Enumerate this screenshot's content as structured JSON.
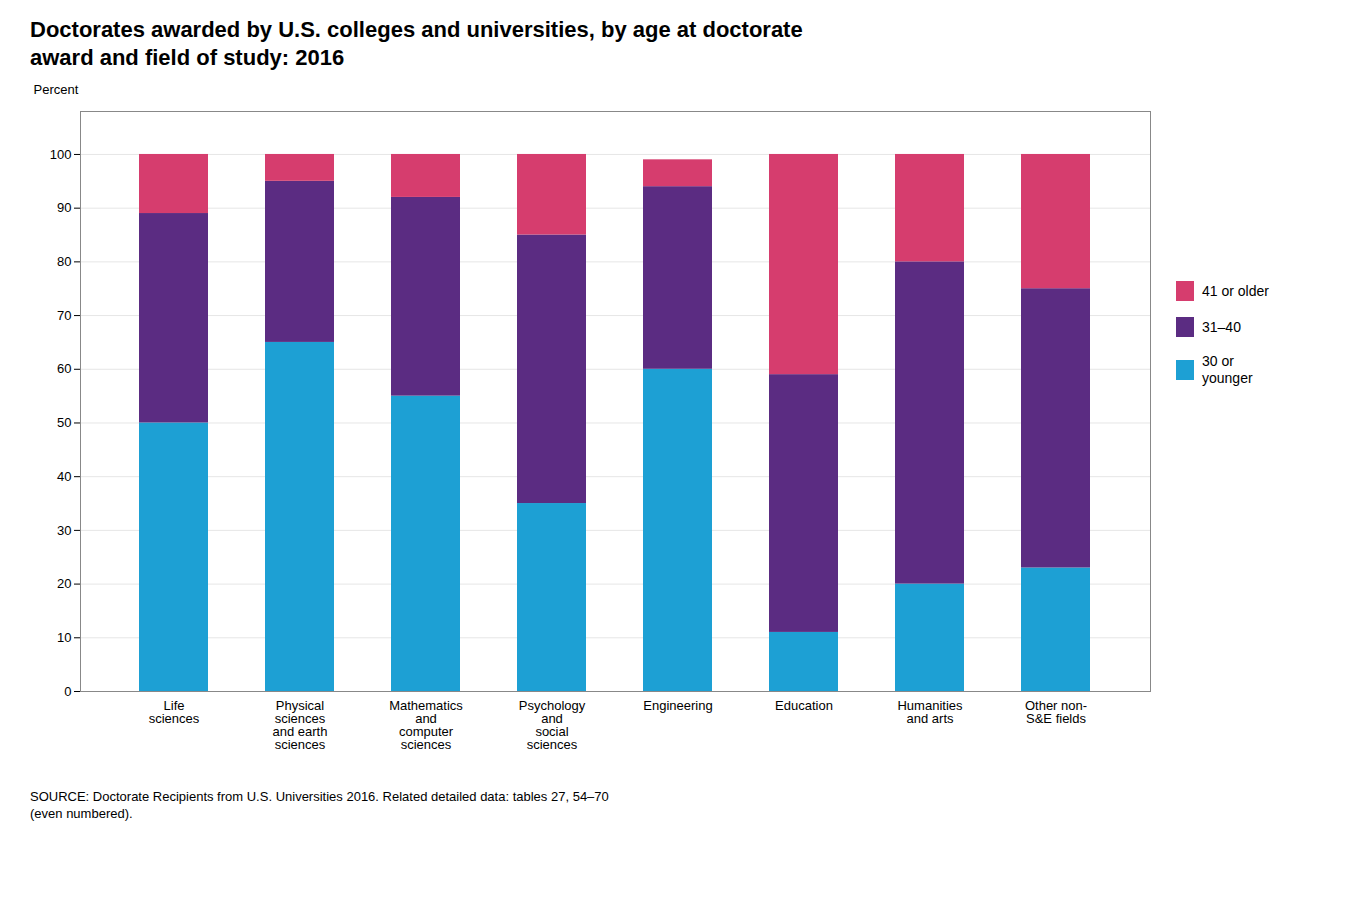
{
  "chart_data": {
    "type": "bar",
    "stacked": true,
    "title": "Doctorates awarded by U.S. colleges and universities, by age at doctorate\naward and field of study: 2016",
    "ylabel": "Percent",
    "caption": "SOURCE: Doctorate Recipients from U.S. Universities 2016. Related detailed data: tables 27, 54–70\n(even numbered).",
    "categories": [
      "Life\nsciences",
      "Physical\nsciences\nand earth\nsciences",
      "Mathematics\nand\ncomputer\nsciences",
      "Psychology\nand\nsocial\nsciences",
      "Engineering",
      "Education",
      "Humanities\nand arts",
      "Other non-\nS&E fields"
    ],
    "series": [
      {
        "name": "30 or\nyounger",
        "color": "#1da0d4",
        "values": [
          50,
          65,
          55,
          35,
          60,
          11,
          20,
          23
        ]
      },
      {
        "name": "31–40",
        "color": "#5b2c82",
        "values": [
          39,
          30,
          37,
          50,
          34,
          48,
          60,
          52
        ]
      },
      {
        "name": "41 or older",
        "color": "#d63d6e",
        "values": [
          11,
          5,
          8,
          15,
          5,
          41,
          20,
          25
        ]
      }
    ],
    "ylim": [
      0,
      108
    ],
    "yticks": [
      0,
      10,
      20,
      30,
      40,
      50,
      60,
      70,
      80,
      90,
      100
    ],
    "grid": true,
    "legend": "right"
  }
}
